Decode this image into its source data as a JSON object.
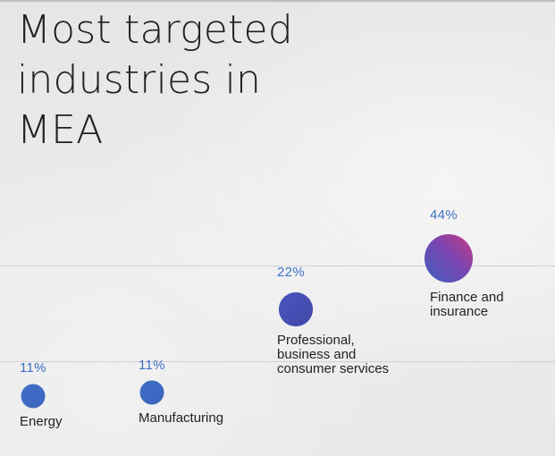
{
  "chart_data": {
    "type": "scatter",
    "title_lines": [
      "Most targeted",
      "industries in",
      "MEA"
    ],
    "categories": [
      "Energy",
      "Manufacturing",
      "Professional,\nbusiness and\nconsumer services",
      "Finance and\ninsurance"
    ],
    "values": [
      11,
      11,
      22,
      44
    ],
    "value_labels": [
      "11%",
      "11%",
      "22%",
      "44%"
    ],
    "colors": {
      "bubble_blue": "#3f6fc6",
      "bubble_indigo": "#4a4fb8",
      "bubble_magenta": "#c43a8c",
      "label_blue": "#3a6fc4"
    },
    "grid": true,
    "legend": "none"
  }
}
